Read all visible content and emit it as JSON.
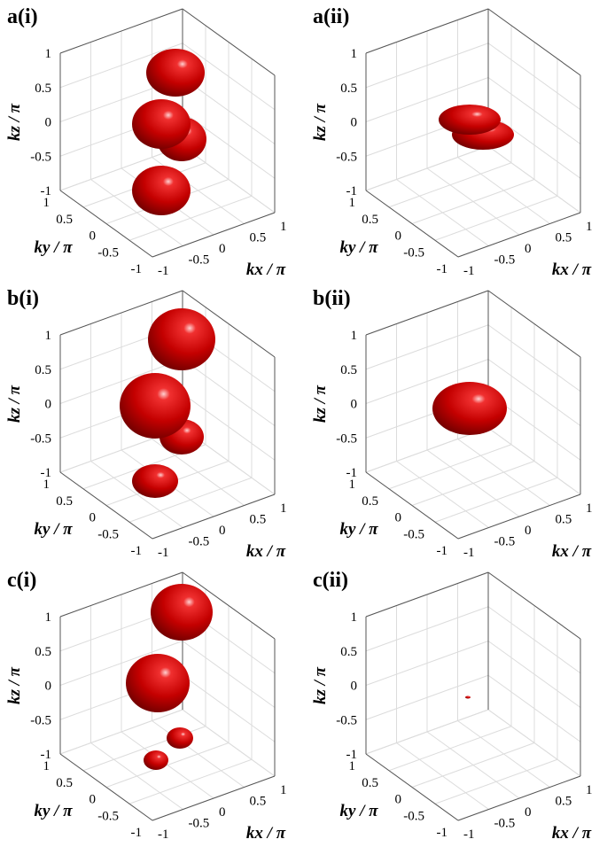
{
  "panels": [
    {
      "label": "a(i)",
      "xlabel": "kx / π",
      "ylabel": "ky / π",
      "zlabel": "kz / π",
      "xticks": [
        -1,
        -0.5,
        0,
        0.5,
        1
      ],
      "yticks": [
        -1,
        -0.5,
        0,
        0.5,
        1
      ],
      "zticks": [
        -1,
        -0.5,
        0,
        0.5,
        1
      ]
    },
    {
      "label": "a(ii)",
      "xlabel": "kx / π",
      "ylabel": "ky / π",
      "zlabel": "kz / π",
      "xticks": [
        -1,
        -0.5,
        0,
        0.5,
        1
      ],
      "yticks": [
        -1,
        -0.5,
        0,
        0.5,
        1
      ],
      "zticks": [
        -1,
        -0.5,
        0,
        0.5,
        1
      ]
    },
    {
      "label": "b(i)",
      "xlabel": "kx / π",
      "ylabel": "ky / π",
      "zlabel": "kz / π",
      "xticks": [
        -1,
        -0.5,
        0,
        0.5,
        1
      ],
      "yticks": [
        -1,
        -0.5,
        0,
        0.5,
        1
      ],
      "zticks": [
        -1,
        -0.5,
        0,
        0.5,
        1
      ]
    },
    {
      "label": "b(ii)",
      "xlabel": "kx / π",
      "ylabel": "ky / π",
      "zlabel": "kz / π",
      "xticks": [
        -1,
        -0.5,
        0,
        0.5,
        1
      ],
      "yticks": [
        -1,
        -0.5,
        0,
        0.5,
        1
      ],
      "zticks": [
        -1,
        -0.5,
        0,
        0.5,
        1
      ]
    },
    {
      "label": "c(i)",
      "xlabel": "kx / π",
      "ylabel": "ky / π",
      "zlabel": "kz / π",
      "xticks": [
        -1,
        -0.5,
        0,
        0.5,
        1
      ],
      "yticks": [
        -1,
        -0.5,
        0,
        0.5,
        1
      ],
      "zticks": [
        -1,
        -0.5,
        0,
        0.5,
        1
      ]
    },
    {
      "label": "c(ii)",
      "xlabel": "kx / π",
      "ylabel": "ky / π",
      "zlabel": "kz / π",
      "xticks": [
        -1,
        -0.5,
        0,
        0.5,
        1
      ],
      "yticks": [
        -1,
        -0.5,
        0,
        0.5,
        1
      ],
      "zticks": [
        -1,
        -0.5,
        0,
        0.5,
        1
      ]
    }
  ]
}
